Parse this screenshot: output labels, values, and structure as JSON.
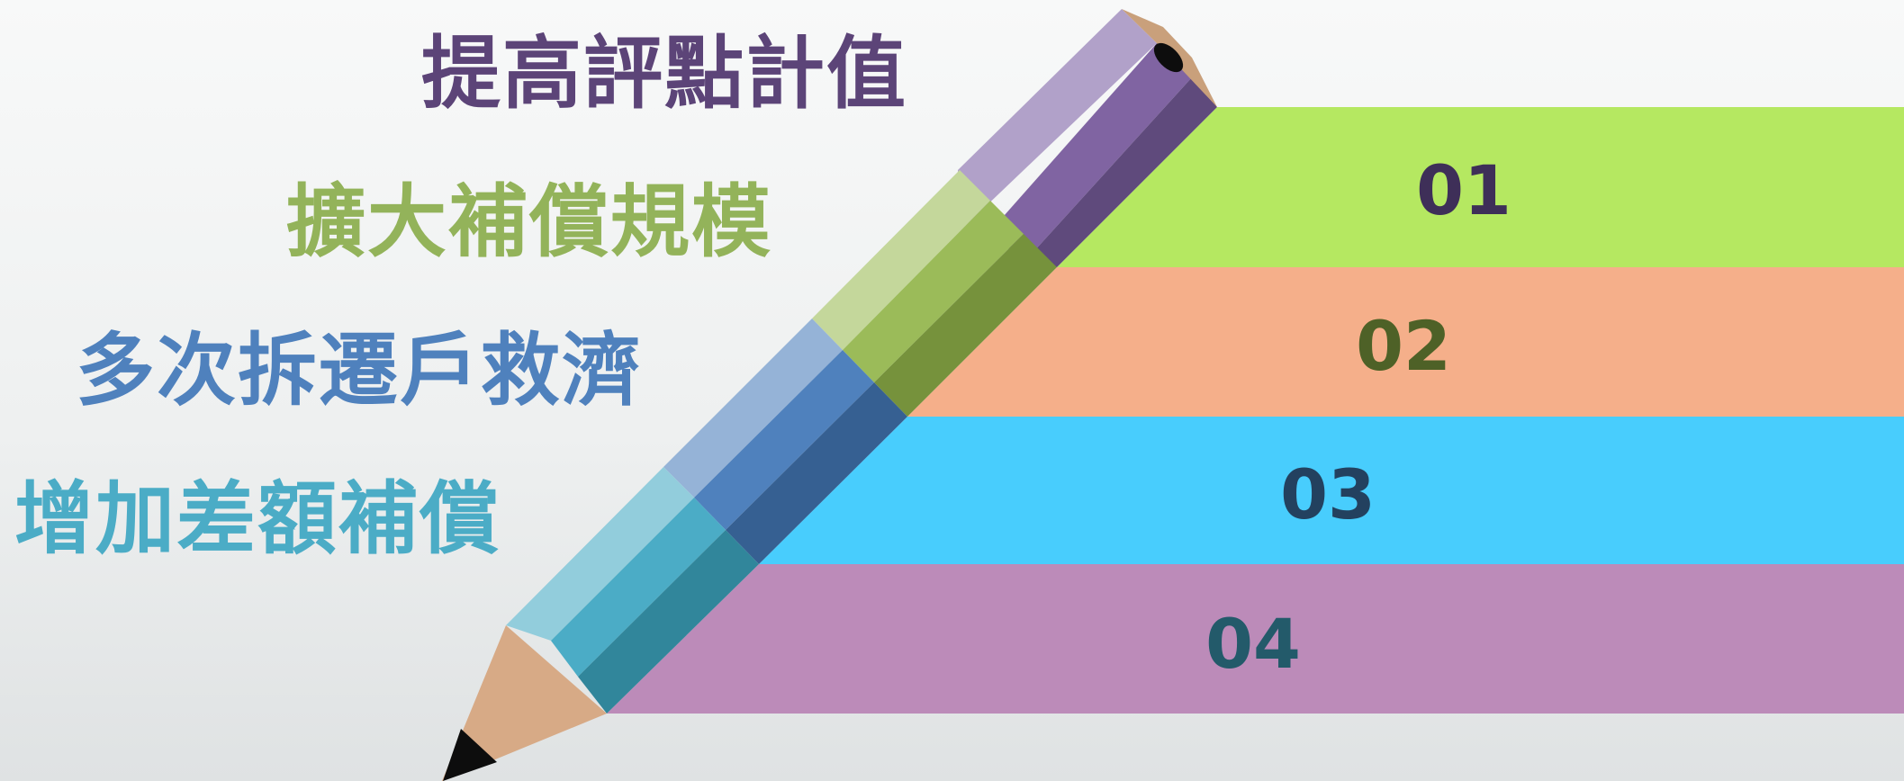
{
  "items": [
    {
      "number": "01",
      "label": "提高評點計值",
      "band_color": "#b5e861",
      "number_color": "#3e2f58",
      "label_color": "#5c4478",
      "pencil_colors": [
        "#b1a1c9",
        "#8064a2",
        "#5f4a7c"
      ]
    },
    {
      "number": "02",
      "label": "擴大補償規模",
      "band_color": "#f5af8a",
      "number_color": "#4e6127",
      "label_color": "#93b35a",
      "pencil_colors": [
        "#c4d79b",
        "#9bbb59",
        "#76923c"
      ]
    },
    {
      "number": "03",
      "label": "多次拆遷戶救濟",
      "band_color": "#48cdfd",
      "number_color": "#23415f",
      "label_color": "#4f81bd",
      "pencil_colors": [
        "#95b3d7",
        "#4f81bd",
        "#366092"
      ]
    },
    {
      "number": "04",
      "label": "增加差額補償",
      "band_color": "#bc8bb9",
      "number_color": "#235a6a",
      "label_color": "#4bacc6",
      "pencil_colors": [
        "#92cddc",
        "#4bacc6",
        "#31869b"
      ]
    }
  ],
  "colors": {
    "wood": "#d7aa86",
    "wood_light": "#c9a07b",
    "lead": "#0d0d0d"
  }
}
